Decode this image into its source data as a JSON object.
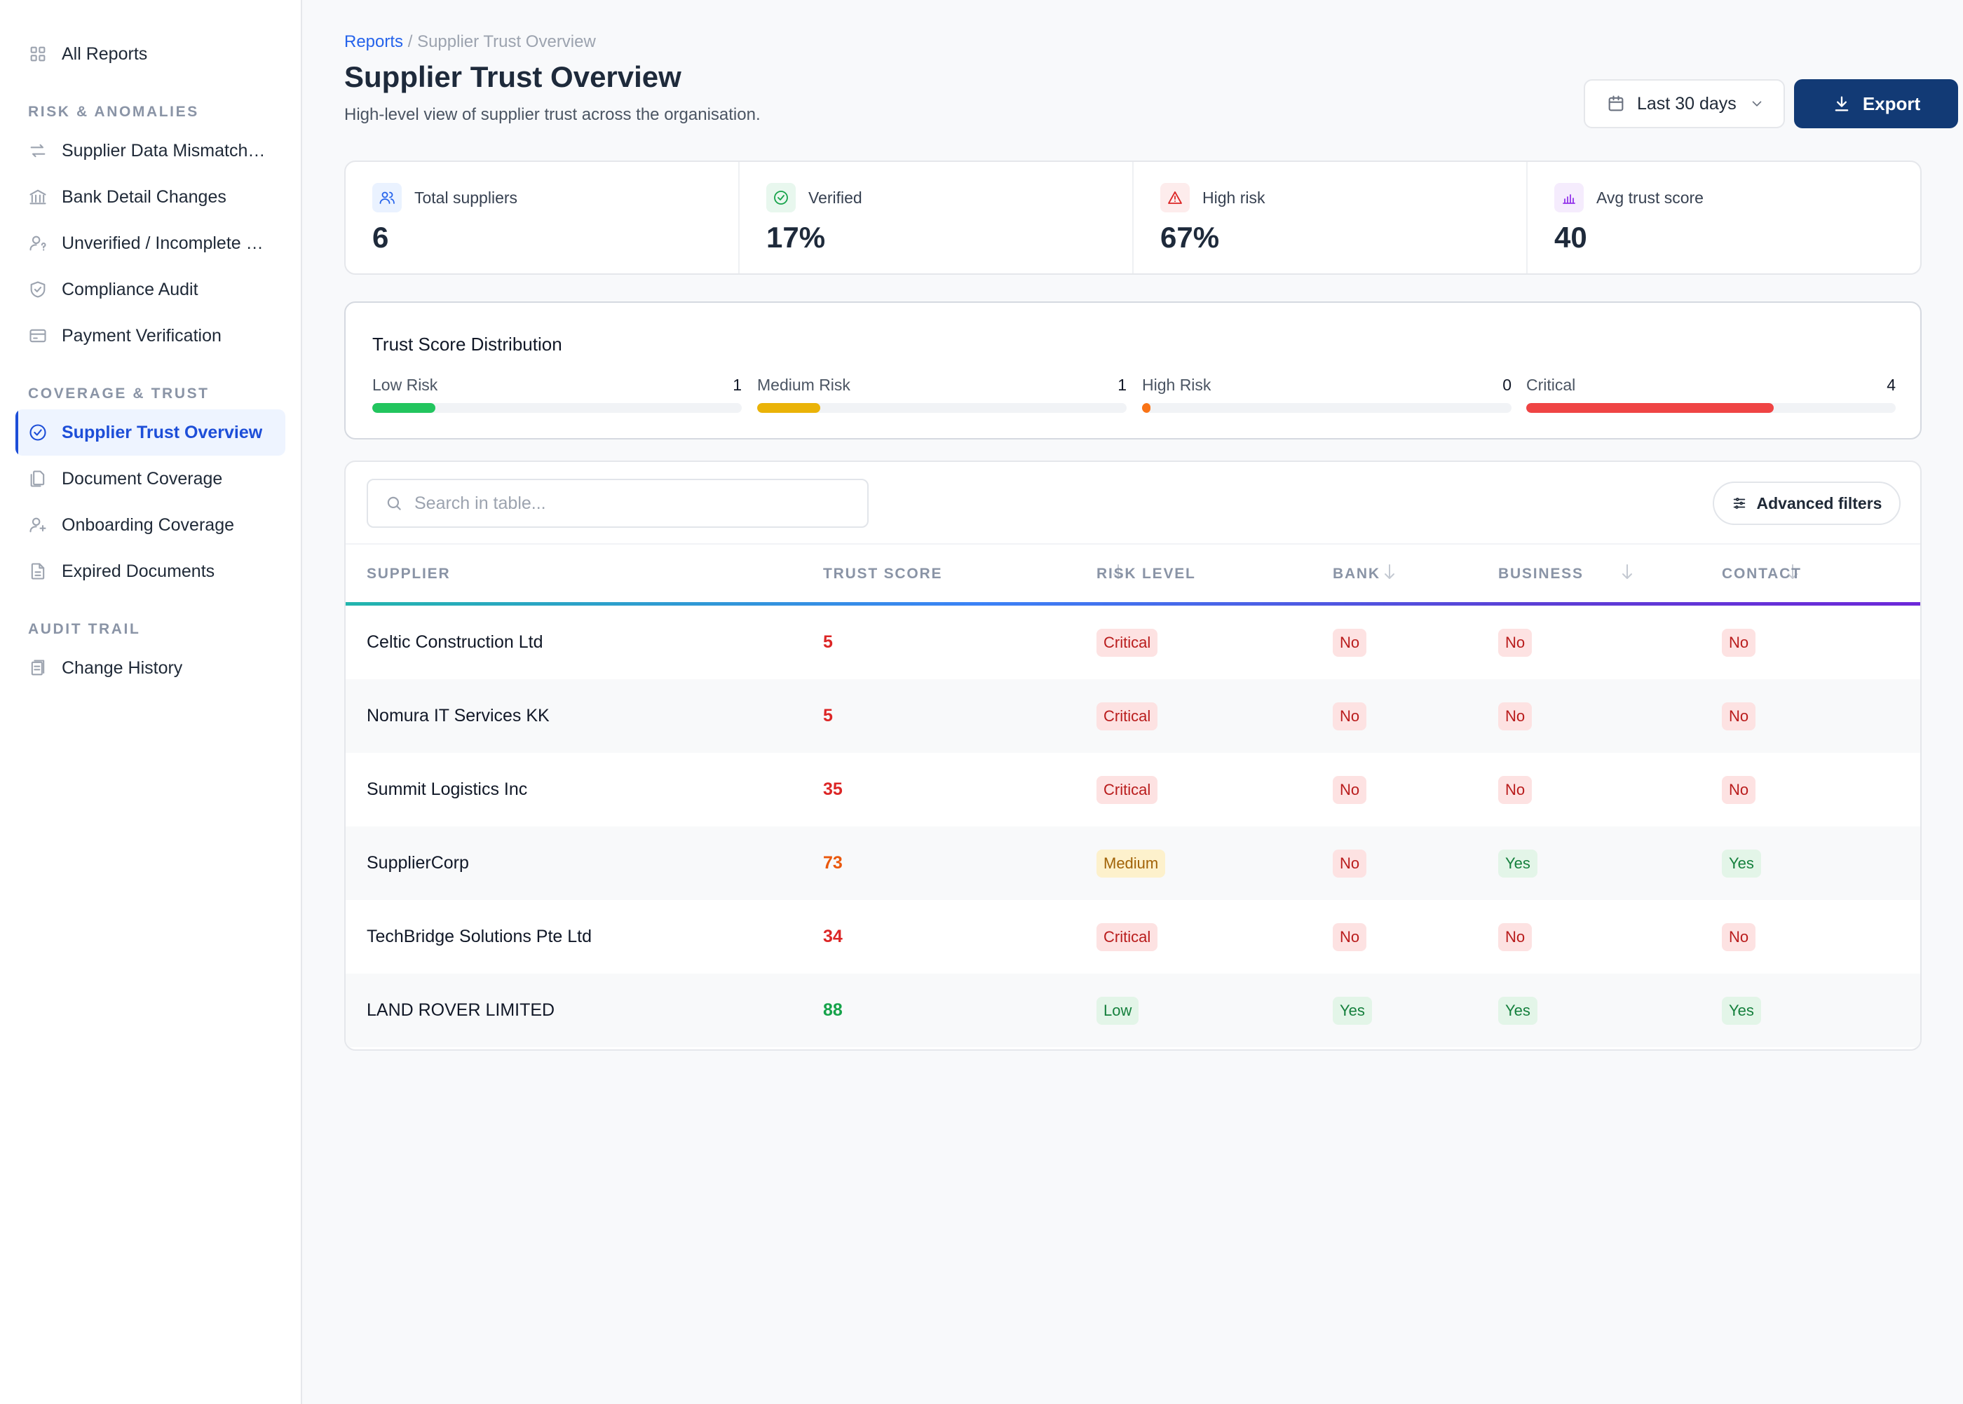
{
  "sidebar": {
    "top_item": {
      "label": "All Reports",
      "icon": "grid-icon"
    },
    "sections": [
      {
        "title": "RISK & ANOMALIES",
        "items": [
          {
            "label": "Supplier Data Mismatch…",
            "icon": "swap-icon"
          },
          {
            "label": "Bank Detail Changes",
            "icon": "bank-icon"
          },
          {
            "label": "Unverified / Incomplete …",
            "icon": "user-question-icon"
          },
          {
            "label": "Compliance Audit",
            "icon": "shield-check-icon"
          },
          {
            "label": "Payment Verification",
            "icon": "credit-card-icon"
          }
        ]
      },
      {
        "title": "COVERAGE & TRUST",
        "items": [
          {
            "label": "Supplier Trust Overview",
            "icon": "check-circle-icon",
            "active": true
          },
          {
            "label": "Document Coverage",
            "icon": "documents-icon"
          },
          {
            "label": "Onboarding Coverage",
            "icon": "user-plus-icon"
          },
          {
            "label": "Expired Documents",
            "icon": "file-icon"
          }
        ]
      },
      {
        "title": "AUDIT TRAIL",
        "items": [
          {
            "label": "Change History",
            "icon": "history-icon"
          }
        ]
      }
    ]
  },
  "header": {
    "breadcrumb_link": "Reports",
    "breadcrumb_sep": " / ",
    "breadcrumb_current": "Supplier Trust Overview",
    "title": "Supplier Trust Overview",
    "subtitle": "High-level view of supplier trust across the organisation.",
    "date_range": "Last 30 days",
    "export_label": "Export"
  },
  "stats": [
    {
      "label": "Total suppliers",
      "value": "6",
      "icon": "users-icon",
      "color": "#2563eb",
      "bg": "#eaf2ff"
    },
    {
      "label": "Verified",
      "value": "17%",
      "icon": "check-circle-icon",
      "color": "#16a34a",
      "bg": "#e8f7ee"
    },
    {
      "label": "High risk",
      "value": "67%",
      "icon": "warning-icon",
      "color": "#dc2626",
      "bg": "#fdecec"
    },
    {
      "label": "Avg trust score",
      "value": "40",
      "icon": "bar-chart-icon",
      "color": "#9333ea",
      "bg": "#f5ecfd"
    }
  ],
  "distribution": {
    "title": "Trust Score Distribution",
    "items": [
      {
        "label": "Low Risk",
        "count": "1",
        "fraction": 0.17,
        "color": "#22c55e"
      },
      {
        "label": "Medium Risk",
        "count": "1",
        "fraction": 0.17,
        "color": "#eab308"
      },
      {
        "label": "High Risk",
        "count": "0",
        "fraction": 0.0,
        "color": "#f97316"
      },
      {
        "label": "Critical",
        "count": "4",
        "fraction": 0.67,
        "color": "#ef4444"
      }
    ]
  },
  "table": {
    "search_placeholder": "Search in table...",
    "advanced_filters_label": "Advanced filters",
    "columns": [
      "SUPPLIER",
      "TRUST SCORE",
      "RISK LEVEL",
      "BANK",
      "BUSINESS",
      "CONTACT"
    ],
    "rows": [
      {
        "supplier": "Celtic Construction Ltd",
        "score": "5",
        "score_color": "#dc2626",
        "risk": "Critical",
        "risk_tone": "red",
        "bank": "No",
        "business": "No",
        "contact": "No"
      },
      {
        "supplier": "Nomura IT Services KK",
        "score": "5",
        "score_color": "#dc2626",
        "risk": "Critical",
        "risk_tone": "red",
        "bank": "No",
        "business": "No",
        "contact": "No"
      },
      {
        "supplier": "Summit Logistics Inc",
        "score": "35",
        "score_color": "#dc2626",
        "risk": "Critical",
        "risk_tone": "red",
        "bank": "No",
        "business": "No",
        "contact": "No"
      },
      {
        "supplier": "SupplierCorp",
        "score": "73",
        "score_color": "#ea580c",
        "risk": "Medium",
        "risk_tone": "amber",
        "bank": "No",
        "business": "Yes",
        "contact": "Yes"
      },
      {
        "supplier": "TechBridge Solutions Pte Ltd",
        "score": "34",
        "score_color": "#dc2626",
        "risk": "Critical",
        "risk_tone": "red",
        "bank": "No",
        "business": "No",
        "contact": "No"
      },
      {
        "supplier": "LAND ROVER LIMITED",
        "score": "88",
        "score_color": "#16a34a",
        "risk": "Low",
        "risk_tone": "green",
        "bank": "Yes",
        "business": "Yes",
        "contact": "Yes"
      }
    ]
  }
}
